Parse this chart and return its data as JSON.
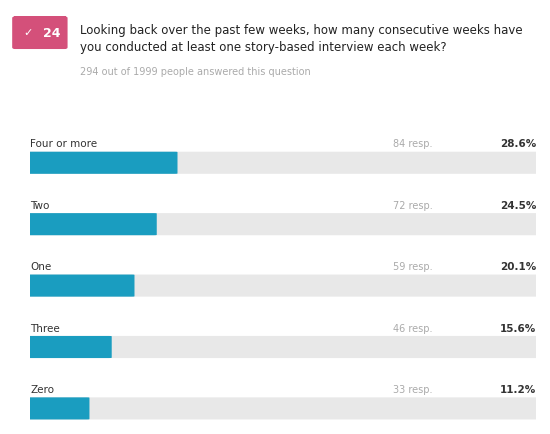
{
  "question_number": "24",
  "question_line1": "Looking back over the past few weeks, how many consecutive weeks have",
  "question_line2": "you conducted at least one story-based interview each week?",
  "subtitle": "294 out of 1999 people answered this question",
  "categories": [
    "Four or more",
    "Two",
    "One",
    "Three",
    "Zero"
  ],
  "percentages": [
    28.6,
    24.5,
    20.1,
    15.6,
    11.2
  ],
  "pct_labels": [
    "28.6%",
    "24.5%",
    "20.1%",
    "15.6%",
    "11.2%"
  ],
  "resp_labels": [
    "84 resp.",
    "72 resp.",
    "59 resp.",
    "46 resp.",
    "33 resp."
  ],
  "bar_color": "#1a9dc0",
  "bg_bar_color": "#e8e8e8",
  "badge_color": "#d4507a",
  "badge_text_color": "#ffffff",
  "question_text_color": "#222222",
  "subtitle_color": "#aaaaaa",
  "label_color": "#333333",
  "resp_color": "#aaaaaa",
  "pct_color": "#333333",
  "bg_color": "#ffffff"
}
